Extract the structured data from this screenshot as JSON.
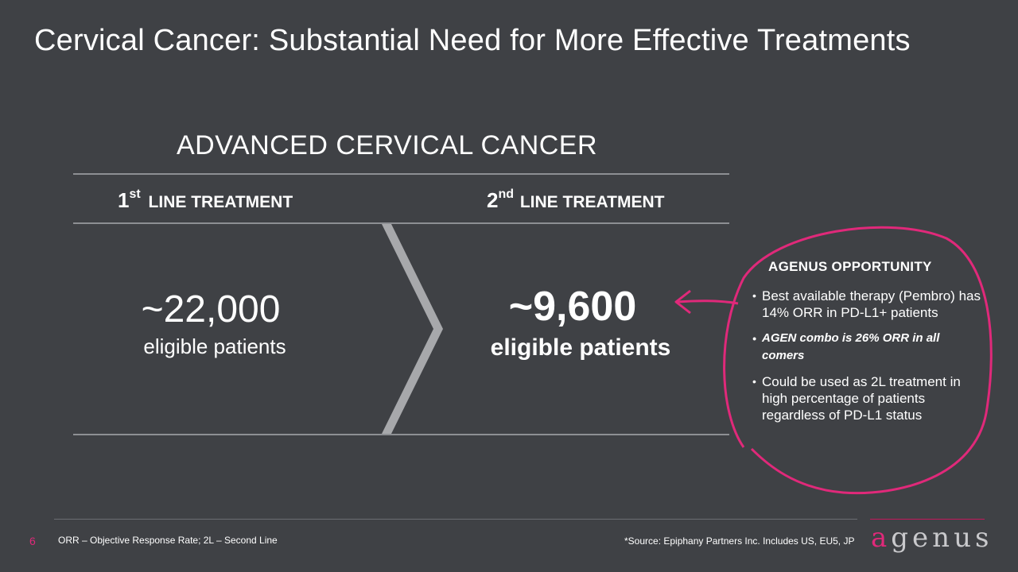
{
  "slide": {
    "title": "Cervical Cancer: Substantial Need for More Effective Treatments",
    "section_title": "ADVANCED CERVICAL CANCER"
  },
  "columns": [
    {
      "ordinal": "1",
      "suffix": "st",
      "label": "LINE TREATMENT",
      "number": "~22,000",
      "sublabel": "eligible patients"
    },
    {
      "ordinal": "2",
      "suffix": "nd",
      "label": "LINE TREATMENT",
      "number": "~9,600",
      "sublabel": "eligible patients"
    }
  ],
  "opportunity": {
    "title": "AGENUS OPPORTUNITY",
    "bullets": [
      "Best available therapy (Pembro) has 14% ORR in PD-L1+ patients",
      "AGEN combo is 26% ORR in all comers",
      "Could be used as 2L treatment in high percentage of patients regardless of PD-L1 status"
    ]
  },
  "footer": {
    "page_number": "6",
    "abbreviations": "ORR – Objective Response Rate;  2L – Second Line",
    "source": "*Source: Epiphany Partners Inc. Includes US, EU5, JP",
    "logo_first": "a",
    "logo_rest": "genus"
  },
  "colors": {
    "background": "#3f4145",
    "accent": "#e0297a",
    "chevron": "#a7a8ab"
  }
}
